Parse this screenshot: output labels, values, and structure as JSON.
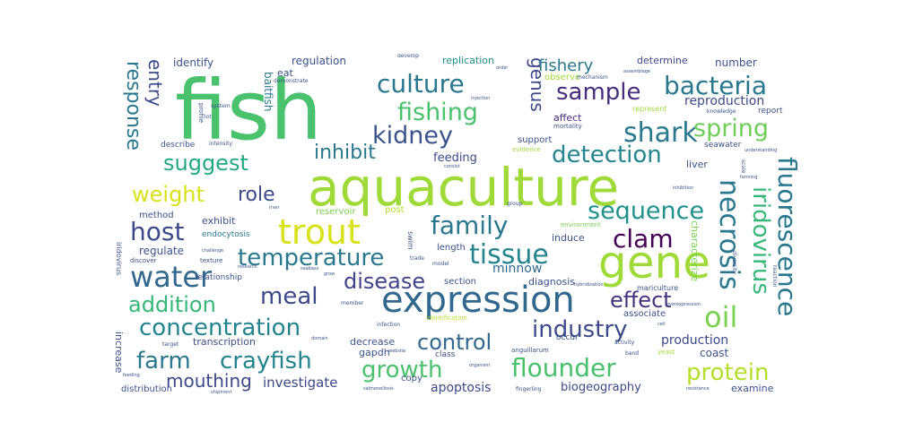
{
  "words": {
    "fish": {
      "text": "fish",
      "color": "#4ac16d"
    },
    "aquaculture": {
      "text": "aquaculture",
      "color": "#a0da39"
    },
    "expression": {
      "text": "expression",
      "color": "#31688e"
    },
    "gene": {
      "text": "gene",
      "color": "#a0da39"
    },
    "trout": {
      "text": "trout",
      "color": "#d8e219"
    },
    "culture": {
      "text": "culture",
      "color": "#2a788e"
    },
    "fishing": {
      "text": "fishing",
      "color": "#4ac16d"
    },
    "kidney": {
      "text": "kidney",
      "color": "#3b528b"
    },
    "sample": {
      "text": "sample",
      "color": "#472d7b"
    },
    "bacteria": {
      "text": "bacteria",
      "color": "#2a788e"
    },
    "shark": {
      "text": "shark",
      "color": "#2a788e"
    },
    "spring": {
      "text": "spring",
      "color": "#6ece58"
    },
    "suggest": {
      "text": "suggest",
      "color": "#22a884"
    },
    "inhibit": {
      "text": "inhibit",
      "color": "#2a788e"
    },
    "detection": {
      "text": "detection",
      "color": "#25858e"
    },
    "weight": {
      "text": "weight",
      "color": "#d8e219"
    },
    "role": {
      "text": "role",
      "color": "#3e4989"
    },
    "sequence": {
      "text": "sequence",
      "color": "#21918c"
    },
    "host": {
      "text": "host",
      "color": "#3e4989"
    },
    "family": {
      "text": "family",
      "color": "#2a788e"
    },
    "clam": {
      "text": "clam",
      "color": "#440154"
    },
    "temperature": {
      "text": "temperature",
      "color": "#2a788e"
    },
    "tissue": {
      "text": "tissue",
      "color": "#25858e"
    },
    "water": {
      "text": "water",
      "color": "#31688e"
    },
    "disease": {
      "text": "disease",
      "color": "#414487"
    },
    "meal": {
      "text": "meal",
      "color": "#3e4989"
    },
    "addition": {
      "text": "addition",
      "color": "#35b779"
    },
    "effect": {
      "text": "effect",
      "color": "#46327e"
    },
    "concentration": {
      "text": "concentration",
      "color": "#25858e"
    },
    "oil": {
      "text": "oil",
      "color": "#7ad151"
    },
    "industry": {
      "text": "industry",
      "color": "#3e4989"
    },
    "control": {
      "text": "control",
      "color": "#31688e"
    },
    "farm": {
      "text": "farm",
      "color": "#2a788e"
    },
    "crayfish": {
      "text": "crayfish",
      "color": "#25858e"
    },
    "growth": {
      "text": "growth",
      "color": "#4ac16d"
    },
    "flounder": {
      "text": "flounder",
      "color": "#4ac16d"
    },
    "protein": {
      "text": "protein",
      "color": "#b5de2b"
    },
    "mouthing": {
      "text": "mouthing",
      "color": "#3e4989"
    },
    "investigate": {
      "text": "investigate",
      "color": "#3e4989"
    },
    "apoptosis": {
      "text": "apoptosis",
      "color": "#3e4989"
    },
    "biogeography": {
      "text": "biogeography",
      "color": "#3e4989"
    },
    "necrosis": {
      "text": "necrosis",
      "color": "#2a788e"
    },
    "iridovirus": {
      "text": "iridovirus",
      "color": "#35b779"
    },
    "fluorescence": {
      "text": "fluorescence",
      "color": "#2a788e"
    },
    "response": {
      "text": "response",
      "color": "#2a788e"
    },
    "entry": {
      "text": "entry",
      "color": "#3e4989"
    },
    "genus": {
      "text": "genus",
      "color": "#3e4989"
    },
    "fishery": {
      "text": "fishery",
      "color": "#2a788e"
    },
    "identify": {
      "text": "identify",
      "color": "#3b528b"
    },
    "regulation": {
      "text": "regulation",
      "color": "#3b528b"
    },
    "replication": {
      "text": "replication",
      "color": "#21918c"
    },
    "determine": {
      "text": "determine",
      "color": "#3e4989"
    },
    "number": {
      "text": "number",
      "color": "#3b528b"
    },
    "baitfish": {
      "text": "baitfish",
      "color": "#2a788e"
    },
    "eat": {
      "text": "eat",
      "color": "#3b528b"
    },
    "reproduction": {
      "text": "reproduction",
      "color": "#3e4989"
    },
    "represent": {
      "text": "represent",
      "color": "#a0da39"
    },
    "report": {
      "text": "report",
      "color": "#3b528b"
    },
    "affect": {
      "text": "affect",
      "color": "#472d7b"
    },
    "support": {
      "text": "support",
      "color": "#3b528b"
    },
    "feeding": {
      "text": "feeding",
      "color": "#3e4989"
    },
    "describe": {
      "text": "describe",
      "color": "#3b528b"
    },
    "liver": {
      "text": "liver",
      "color": "#3b528b"
    },
    "seawater": {
      "text": "seawater",
      "color": "#3b528b"
    },
    "exhibit": {
      "text": "exhibit",
      "color": "#3b528b"
    },
    "method": {
      "text": "method",
      "color": "#3b528b"
    },
    "reservoir": {
      "text": "reservoir",
      "color": "#7ad151"
    },
    "post": {
      "text": "post",
      "color": "#b5de2b"
    },
    "environment": {
      "text": "environment",
      "color": "#7ad151"
    },
    "endocytosis": {
      "text": "endocytosis",
      "color": "#2a788e"
    },
    "induce": {
      "text": "induce",
      "color": "#3b528b"
    },
    "length": {
      "text": "length",
      "color": "#3b528b"
    },
    "minnow": {
      "text": "minnow",
      "color": "#31688e"
    },
    "regulate": {
      "text": "regulate",
      "color": "#3b528b"
    },
    "relationship": {
      "text": "relationship",
      "color": "#3b528b"
    },
    "diagnosis": {
      "text": "diagnosis",
      "color": "#3b528b"
    },
    "characterize": {
      "text": "characterize",
      "color": "#7ad151"
    },
    "mariculture": {
      "text": "mariculture",
      "color": "#3b528b"
    },
    "associate": {
      "text": "associate",
      "color": "#3b528b"
    },
    "production": {
      "text": "production",
      "color": "#3e4989"
    },
    "transcription": {
      "text": "transcription",
      "color": "#3b528b"
    },
    "decrease": {
      "text": "decrease",
      "color": "#3b528b"
    },
    "coast": {
      "text": "coast",
      "color": "#3b528b"
    },
    "gapdh": {
      "text": "gapdh",
      "color": "#3b528b"
    },
    "increase": {
      "text": "increase",
      "color": "#3b528b"
    },
    "distribution": {
      "text": "distribution",
      "color": "#3b528b"
    },
    "copy": {
      "text": "copy",
      "color": "#3b528b"
    },
    "examine": {
      "text": "examine",
      "color": "#3b528b"
    },
    "iridovirus_small": {
      "text": "iridovirus",
      "color": "#3b528b"
    },
    "develop": {
      "text": "develop",
      "color": "#3b528b"
    },
    "observe": {
      "text": "observe",
      "color": "#a0da39"
    },
    "mortality": {
      "text": "mortality",
      "color": "#3b528b"
    },
    "evidence": {
      "text": "evidence",
      "color": "#a0da39"
    },
    "knowledge": {
      "text": "knowledge",
      "color": "#3b528b"
    },
    "understanding": {
      "text": "understanding",
      "color": "#3b528b"
    },
    "occur": {
      "text": "occur",
      "color": "#3b528b"
    },
    "class": {
      "text": "class",
      "color": "#3b528b"
    },
    "infection": {
      "text": "infection",
      "color": "#3b528b"
    },
    "activity": {
      "text": "activity",
      "color": "#3b528b"
    },
    "system": {
      "text": "system",
      "color": "#3b528b"
    },
    "profile": {
      "text": "profile",
      "color": "#3b528b"
    },
    "intensity": {
      "text": "intensity",
      "color": "#3b528b"
    },
    "demonstrate": {
      "text": "demonstrate",
      "color": "#3b528b"
    },
    "mechanism": {
      "text": "mechanism",
      "color": "#3b528b"
    },
    "assemblage": {
      "text": "assemblage",
      "color": "#3b528b"
    },
    "swim": {
      "text": "swim",
      "color": "#3b528b"
    },
    "identification": {
      "text": "identification",
      "color": "#b5de2b"
    },
    "hybridization": {
      "text": "hybridization",
      "color": "#3b528b"
    },
    "salmonellosis": {
      "text": "salmonellosis",
      "color": "#3b528b"
    },
    "anguillarum": {
      "text": "anguillarum",
      "color": "#3b528b"
    },
    "fingerling": {
      "text": "fingerling",
      "color": "#3b528b"
    },
    "resistance": {
      "text": "resistance",
      "color": "#3b528b"
    },
    "trade": {
      "text": "trade",
      "color": "#3b528b"
    },
    "model": {
      "text": "model",
      "color": "#3b528b"
    },
    "section": {
      "text": "section",
      "color": "#3b528b"
    },
    "yeast": {
      "text": "yeast",
      "color": "#a0da39"
    },
    "band": {
      "text": "band",
      "color": "#3b528b"
    },
    "target": {
      "text": "target",
      "color": "#3b528b"
    },
    "scale": {
      "text": "scale",
      "color": "#3b528b"
    },
    "diversity": {
      "text": "diversity",
      "color": "#3b528b"
    },
    "reaction": {
      "text": "reaction",
      "color": "#3b528b"
    },
    "group": {
      "text": "group",
      "color": "#3b528b"
    },
    "research": {
      "text": "research",
      "color": "#3b528b"
    },
    "texture": {
      "text": "texture",
      "color": "#3b528b"
    },
    "challenge": {
      "text": "challenge",
      "color": "#3b528b"
    },
    "discover": {
      "text": "discover",
      "color": "#3b528b"
    },
    "feeding_small": {
      "text": "feeding",
      "color": "#3b528b"
    },
    "shipment": {
      "text": "shipment",
      "color": "#3b528b"
    },
    "organism": {
      "text": "organism",
      "color": "#3b528b"
    },
    "member": {
      "text": "member",
      "color": "#3b528b"
    },
    "overexpression": {
      "text": "overexpression",
      "color": "#3b528b"
    },
    "cell": {
      "text": "cell",
      "color": "#3b528b"
    },
    "inhibition": {
      "text": "inhibition",
      "color": "#3b528b"
    },
    "farming": {
      "text": "farming",
      "color": "#3b528b"
    },
    "river": {
      "text": "river",
      "color": "#3b528b"
    },
    "order": {
      "text": "order",
      "color": "#3b528b"
    },
    "injection": {
      "text": "injection",
      "color": "#3b528b"
    },
    "consist": {
      "text": "consist",
      "color": "#3b528b"
    },
    "iot": {
      "text": "iot",
      "color": "#3b528b"
    },
    "domain": {
      "text": "domain",
      "color": "#3b528b"
    },
    "website": {
      "text": "website",
      "color": "#3b528b"
    },
    "grow": {
      "text": "grow",
      "color": "#3b528b"
    },
    "seabass": {
      "text": "seabass",
      "color": "#3b528b"
    }
  }
}
